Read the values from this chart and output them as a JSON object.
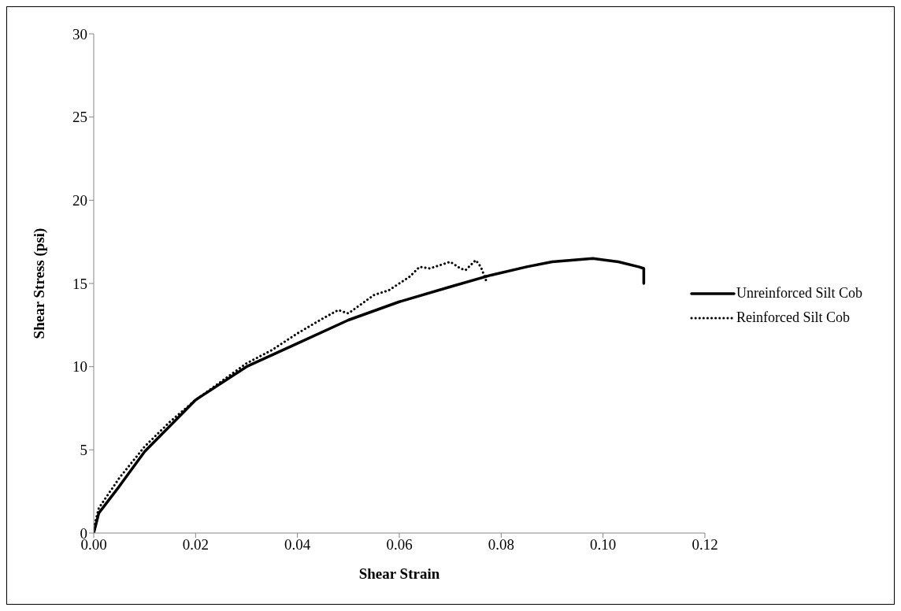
{
  "chart_data": {
    "type": "line",
    "xlabel": "Shear Strain",
    "ylabel": "Shear Stress (psi)",
    "xlim": [
      0,
      0.12
    ],
    "ylim": [
      0,
      30
    ],
    "xticks": [
      {
        "value": 0,
        "label": "0.00"
      },
      {
        "value": 0.02,
        "label": "0.02"
      },
      {
        "value": 0.04,
        "label": "0.04"
      },
      {
        "value": 0.06,
        "label": "0.06"
      },
      {
        "value": 0.08,
        "label": "0.08"
      },
      {
        "value": 0.1,
        "label": "0.10"
      },
      {
        "value": 0.12,
        "label": "0.12"
      }
    ],
    "yticks": [
      0,
      5,
      10,
      15,
      20,
      25,
      30
    ],
    "grid": false,
    "legend": "right",
    "marker": "none",
    "series": [
      {
        "name": "Unreinforced Silt Cob",
        "color": "#000000",
        "line_style": "solid",
        "x": [
          0,
          0.001,
          0.005,
          0.01,
          0.02,
          0.03,
          0.04,
          0.05,
          0.06,
          0.07,
          0.078,
          0.085,
          0.09,
          0.098,
          0.103,
          0.107,
          0.108,
          0.108
        ],
        "values": [
          0,
          1.2,
          2.8,
          4.9,
          8.0,
          10.0,
          11.4,
          12.8,
          13.9,
          14.8,
          15.5,
          16.0,
          16.3,
          16.5,
          16.3,
          16.0,
          15.9,
          15.0
        ]
      },
      {
        "name": "Reinforced Silt Cob",
        "color": "#000000",
        "line_style": "dotted",
        "x": [
          0,
          0.001,
          0.003,
          0.005,
          0.01,
          0.015,
          0.02,
          0.03,
          0.035,
          0.04,
          0.045,
          0.048,
          0.05,
          0.055,
          0.058,
          0.062,
          0.064,
          0.066,
          0.07,
          0.072,
          0.073,
          0.075,
          0.076,
          0.077,
          0.077
        ],
        "values": [
          0.3,
          1.5,
          2.4,
          3.3,
          5.2,
          6.7,
          8.0,
          10.2,
          11.0,
          12.0,
          12.9,
          13.4,
          13.2,
          14.3,
          14.6,
          15.4,
          16.0,
          15.9,
          16.3,
          15.9,
          15.8,
          16.4,
          16.0,
          15.2,
          15.6
        ]
      }
    ]
  }
}
